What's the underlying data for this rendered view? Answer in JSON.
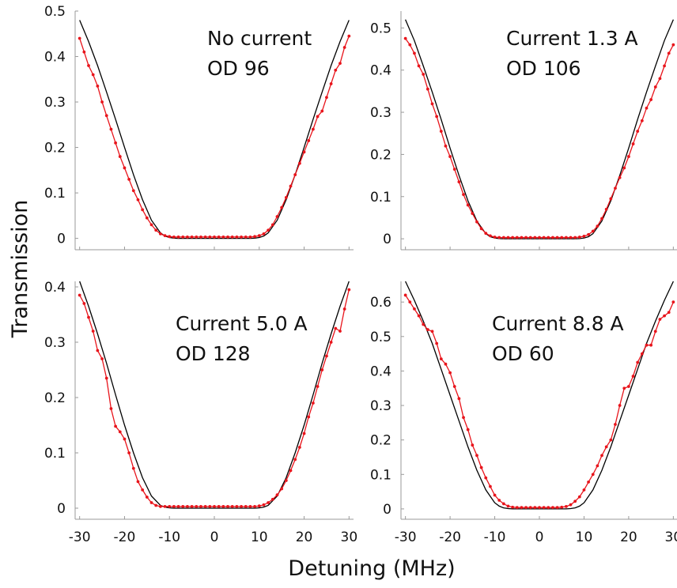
{
  "figure": {
    "xlabel": "Detuning (MHz)",
    "ylabel": "Transmission"
  },
  "chart_data": [
    {
      "type": "line",
      "annotation": [
        "No current",
        "OD 96"
      ],
      "xlim": [
        -31,
        31
      ],
      "ylim": [
        -0.025,
        0.5
      ],
      "xticks": [
        -30,
        -20,
        -10,
        0,
        10,
        20,
        30
      ],
      "yticks": [
        0,
        0.1,
        0.2,
        0.3,
        0.4,
        0.5
      ],
      "ytick_labels": [
        "0",
        "0.1",
        "0.2",
        "0.3",
        "0.4",
        "0.5"
      ],
      "series": [
        {
          "role": "fit",
          "color": "#000000",
          "x": [
            -30,
            -28,
            -26,
            -24,
            -22,
            -20,
            -18,
            -16,
            -14,
            -12,
            -11,
            -10,
            -9,
            -8,
            -6,
            -4,
            -2,
            0,
            2,
            4,
            6,
            8,
            9,
            10,
            11,
            12,
            14,
            16,
            18,
            20,
            22,
            24,
            26,
            28,
            30
          ],
          "y": [
            0.48,
            0.433,
            0.38,
            0.322,
            0.262,
            0.2,
            0.14,
            0.085,
            0.04,
            0.012,
            0.005,
            0.002,
            0.0005,
            0,
            0,
            0,
            0,
            0,
            0,
            0,
            0,
            0,
            0.0005,
            0.002,
            0.005,
            0.012,
            0.04,
            0.085,
            0.14,
            0.2,
            0.262,
            0.322,
            0.38,
            0.433,
            0.48
          ]
        },
        {
          "role": "data",
          "color": "#e8141b",
          "x": [
            -30,
            -29,
            -28,
            -27,
            -26,
            -25,
            -24,
            -23,
            -22,
            -21,
            -20,
            -19,
            -18,
            -17,
            -16,
            -15,
            -14,
            -13,
            -12,
            -11,
            -10,
            -9,
            -8,
            -7,
            -6,
            -5,
            -4,
            -3,
            -2,
            -1,
            0,
            1,
            2,
            3,
            4,
            5,
            6,
            7,
            8,
            9,
            10,
            11,
            12,
            13,
            14,
            15,
            16,
            17,
            18,
            19,
            20,
            21,
            22,
            23,
            24,
            25,
            26,
            27,
            28,
            29,
            30
          ],
          "y": [
            0.44,
            0.41,
            0.38,
            0.36,
            0.335,
            0.3,
            0.27,
            0.24,
            0.21,
            0.18,
            0.155,
            0.13,
            0.105,
            0.085,
            0.063,
            0.045,
            0.03,
            0.018,
            0.01,
            0.006,
            0.004,
            0.003,
            0.003,
            0.003,
            0.003,
            0.003,
            0.003,
            0.003,
            0.003,
            0.003,
            0.003,
            0.003,
            0.003,
            0.003,
            0.003,
            0.003,
            0.003,
            0.003,
            0.003,
            0.004,
            0.006,
            0.01,
            0.018,
            0.03,
            0.048,
            0.068,
            0.09,
            0.115,
            0.14,
            0.165,
            0.19,
            0.215,
            0.24,
            0.268,
            0.28,
            0.31,
            0.34,
            0.37,
            0.385,
            0.42,
            0.445
          ]
        }
      ]
    },
    {
      "type": "line",
      "annotation": [
        "Current 1.3 A",
        "OD 106"
      ],
      "xlim": [
        -31,
        31
      ],
      "ylim": [
        -0.026,
        0.54
      ],
      "xticks": [
        -30,
        -20,
        -10,
        0,
        10,
        20,
        30
      ],
      "yticks": [
        0,
        0.1,
        0.2,
        0.3,
        0.4,
        0.5
      ],
      "ytick_labels": [
        "0",
        "0.1",
        "0.2",
        "0.3",
        "0.4",
        "0.5"
      ],
      "series": [
        {
          "role": "fit",
          "color": "#000000",
          "x": [
            -30,
            -28,
            -26,
            -24,
            -22,
            -20,
            -18,
            -16,
            -14,
            -12,
            -11,
            -10,
            -9,
            -8,
            -6,
            -4,
            -2,
            0,
            2,
            4,
            6,
            8,
            9,
            10,
            11,
            12,
            14,
            16,
            18,
            20,
            22,
            24,
            26,
            28,
            30
          ],
          "y": [
            0.52,
            0.47,
            0.41,
            0.348,
            0.283,
            0.215,
            0.15,
            0.09,
            0.042,
            0.012,
            0.005,
            0.002,
            0.0005,
            0,
            0,
            0,
            0,
            0,
            0,
            0,
            0,
            0,
            0.0005,
            0.002,
            0.005,
            0.012,
            0.042,
            0.09,
            0.15,
            0.215,
            0.283,
            0.348,
            0.41,
            0.47,
            0.52
          ]
        },
        {
          "role": "data",
          "color": "#e8141b",
          "x": [
            -30,
            -29,
            -28,
            -27,
            -26,
            -25,
            -24,
            -23,
            -22,
            -21,
            -20,
            -19,
            -18,
            -17,
            -16,
            -15,
            -14,
            -13,
            -12,
            -11,
            -10,
            -9,
            -8,
            -7,
            -6,
            -5,
            -4,
            -3,
            -2,
            -1,
            0,
            1,
            2,
            3,
            4,
            5,
            6,
            7,
            8,
            9,
            10,
            11,
            12,
            13,
            14,
            15,
            16,
            17,
            18,
            19,
            20,
            21,
            22,
            23,
            24,
            25,
            26,
            27,
            28,
            29,
            30
          ],
          "y": [
            0.475,
            0.46,
            0.44,
            0.41,
            0.39,
            0.355,
            0.32,
            0.29,
            0.255,
            0.22,
            0.195,
            0.165,
            0.135,
            0.105,
            0.08,
            0.06,
            0.04,
            0.024,
            0.013,
            0.007,
            0.004,
            0.003,
            0.003,
            0.003,
            0.003,
            0.003,
            0.003,
            0.003,
            0.003,
            0.003,
            0.003,
            0.003,
            0.003,
            0.003,
            0.003,
            0.003,
            0.003,
            0.003,
            0.003,
            0.004,
            0.006,
            0.01,
            0.018,
            0.03,
            0.048,
            0.07,
            0.095,
            0.12,
            0.145,
            0.168,
            0.195,
            0.225,
            0.255,
            0.28,
            0.31,
            0.33,
            0.36,
            0.38,
            0.41,
            0.44,
            0.46
          ]
        }
      ]
    },
    {
      "type": "line",
      "annotation": [
        "Current 5.0 A",
        "OD 128"
      ],
      "xlim": [
        -31,
        31
      ],
      "ylim": [
        -0.02,
        0.41
      ],
      "xticks": [
        -30,
        -20,
        -10,
        0,
        10,
        20,
        30
      ],
      "yticks": [
        0,
        0.1,
        0.2,
        0.3,
        0.4
      ],
      "ytick_labels": [
        "0",
        "0.1",
        "0.2",
        "0.3",
        "0.4"
      ],
      "series": [
        {
          "role": "fit",
          "color": "#000000",
          "x": [
            -30,
            -28,
            -26,
            -24,
            -22,
            -20,
            -18,
            -16,
            -14,
            -12,
            -11,
            -10,
            -9,
            -8,
            -6,
            -4,
            -2,
            0,
            2,
            4,
            6,
            8,
            9,
            10,
            11,
            12,
            14,
            16,
            18,
            20,
            22,
            24,
            26,
            28,
            30
          ],
          "y": [
            0.41,
            0.365,
            0.315,
            0.262,
            0.205,
            0.15,
            0.1,
            0.055,
            0.022,
            0.005,
            0.002,
            0.0005,
            0,
            0,
            0,
            0,
            0,
            0,
            0,
            0,
            0,
            0,
            0,
            0.0005,
            0.002,
            0.005,
            0.022,
            0.055,
            0.1,
            0.15,
            0.205,
            0.262,
            0.315,
            0.365,
            0.41
          ]
        },
        {
          "role": "data",
          "color": "#e8141b",
          "x": [
            -30,
            -29,
            -28,
            -27,
            -26,
            -25,
            -24,
            -23,
            -22,
            -21,
            -20,
            -19,
            -18,
            -17,
            -16,
            -15,
            -14,
            -13,
            -12,
            -11,
            -10,
            -9,
            -8,
            -7,
            -6,
            -5,
            -4,
            -3,
            -2,
            -1,
            0,
            1,
            2,
            3,
            4,
            5,
            6,
            7,
            8,
            9,
            10,
            11,
            12,
            13,
            14,
            15,
            16,
            17,
            18,
            19,
            20,
            21,
            22,
            23,
            24,
            25,
            26,
            27,
            28,
            29,
            30
          ],
          "y": [
            0.385,
            0.37,
            0.345,
            0.32,
            0.285,
            0.27,
            0.235,
            0.18,
            0.148,
            0.138,
            0.125,
            0.1,
            0.072,
            0.048,
            0.033,
            0.02,
            0.01,
            0.005,
            0.003,
            0.003,
            0.003,
            0.003,
            0.003,
            0.003,
            0.003,
            0.003,
            0.003,
            0.003,
            0.003,
            0.003,
            0.003,
            0.003,
            0.003,
            0.003,
            0.003,
            0.003,
            0.003,
            0.003,
            0.003,
            0.003,
            0.004,
            0.006,
            0.01,
            0.016,
            0.024,
            0.035,
            0.05,
            0.068,
            0.088,
            0.11,
            0.135,
            0.165,
            0.19,
            0.22,
            0.25,
            0.275,
            0.3,
            0.325,
            0.32,
            0.36,
            0.395
          ]
        }
      ]
    },
    {
      "type": "line",
      "annotation": [
        "Current 8.8 A",
        "OD 60"
      ],
      "xlim": [
        -31,
        31
      ],
      "ylim": [
        -0.03,
        0.66
      ],
      "xticks": [
        -30,
        -20,
        -10,
        0,
        10,
        20,
        30
      ],
      "yticks": [
        0,
        0.1,
        0.2,
        0.3,
        0.4,
        0.5,
        0.6
      ],
      "ytick_labels": [
        "0",
        "0.1",
        "0.2",
        "0.3",
        "0.4",
        "0.5",
        "0.6"
      ],
      "series": [
        {
          "role": "fit",
          "color": "#000000",
          "x": [
            -30,
            -28,
            -26,
            -24,
            -22,
            -20,
            -18,
            -16,
            -14,
            -12,
            -10,
            -9,
            -8,
            -7,
            -6,
            -4,
            -2,
            0,
            2,
            4,
            6,
            7,
            8,
            9,
            10,
            12,
            14,
            16,
            18,
            20,
            22,
            24,
            26,
            28,
            30
          ],
          "y": [
            0.66,
            0.605,
            0.545,
            0.48,
            0.405,
            0.33,
            0.255,
            0.18,
            0.112,
            0.055,
            0.018,
            0.008,
            0.003,
            0.001,
            0,
            0,
            0,
            0,
            0,
            0,
            0,
            0.001,
            0.003,
            0.008,
            0.018,
            0.055,
            0.112,
            0.18,
            0.255,
            0.33,
            0.405,
            0.48,
            0.545,
            0.605,
            0.66
          ]
        },
        {
          "role": "data",
          "color": "#e8141b",
          "x": [
            -30,
            -29,
            -28,
            -27,
            -26,
            -25,
            -24,
            -23,
            -22,
            -21,
            -20,
            -19,
            -18,
            -17,
            -16,
            -15,
            -14,
            -13,
            -12,
            -11,
            -10,
            -9,
            -8,
            -7,
            -6,
            -5,
            -4,
            -3,
            -2,
            -1,
            0,
            1,
            2,
            3,
            4,
            5,
            6,
            7,
            8,
            9,
            10,
            11,
            12,
            13,
            14,
            15,
            16,
            17,
            18,
            19,
            20,
            21,
            22,
            23,
            24,
            25,
            26,
            27,
            28,
            29,
            30
          ],
          "y": [
            0.62,
            0.6,
            0.58,
            0.56,
            0.535,
            0.52,
            0.515,
            0.48,
            0.435,
            0.42,
            0.395,
            0.355,
            0.32,
            0.265,
            0.23,
            0.185,
            0.155,
            0.12,
            0.09,
            0.065,
            0.04,
            0.025,
            0.015,
            0.008,
            0.005,
            0.004,
            0.004,
            0.004,
            0.004,
            0.004,
            0.004,
            0.004,
            0.004,
            0.004,
            0.004,
            0.005,
            0.007,
            0.012,
            0.022,
            0.035,
            0.055,
            0.078,
            0.1,
            0.125,
            0.155,
            0.18,
            0.2,
            0.245,
            0.3,
            0.35,
            0.355,
            0.385,
            0.425,
            0.45,
            0.475,
            0.475,
            0.515,
            0.55,
            0.56,
            0.57,
            0.6
          ]
        }
      ]
    }
  ]
}
